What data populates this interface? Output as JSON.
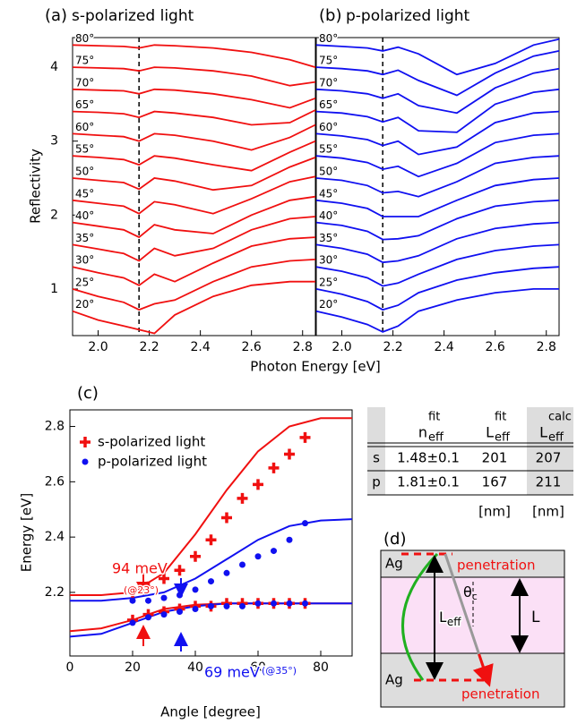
{
  "chart_data": [
    {
      "type": "line",
      "panel_label": "(a)",
      "title": "s-polarized light",
      "color": "#f01010",
      "ylabel": "Reflectivity",
      "xlabel": "Photon Energy [eV]",
      "xlim": [
        1.9,
        2.85
      ],
      "ylim": [
        0.37,
        4.4
      ],
      "xticks": [
        {
          "value": 2,
          "label": "2.0"
        },
        2.2,
        2.4,
        2.6,
        2.8
      ],
      "yticks": [
        1,
        2,
        3,
        4
      ],
      "reference_line": 2.16,
      "x": [
        1.9,
        2.0,
        2.1,
        2.16,
        2.22,
        2.3,
        2.45,
        2.6,
        2.75,
        2.85
      ],
      "series": [
        {
          "name": "20°",
          "values": [
            0.7,
            0.58,
            0.5,
            0.45,
            0.4,
            0.65,
            0.9,
            1.05,
            1.1,
            1.1
          ]
        },
        {
          "name": "25°",
          "values": [
            1.0,
            0.9,
            0.82,
            0.72,
            0.8,
            0.85,
            1.1,
            1.3,
            1.38,
            1.4
          ]
        },
        {
          "name": "30°",
          "values": [
            1.3,
            1.22,
            1.15,
            1.05,
            1.2,
            1.1,
            1.35,
            1.58,
            1.68,
            1.7
          ]
        },
        {
          "name": "35°",
          "values": [
            1.6,
            1.54,
            1.48,
            1.38,
            1.55,
            1.45,
            1.55,
            1.8,
            1.95,
            1.98
          ]
        },
        {
          "name": "40°",
          "values": [
            1.9,
            1.85,
            1.8,
            1.7,
            1.87,
            1.8,
            1.75,
            2.0,
            2.2,
            2.25
          ]
        },
        {
          "name": "45°",
          "values": [
            2.2,
            2.16,
            2.12,
            2.02,
            2.18,
            2.14,
            2.02,
            2.22,
            2.45,
            2.52
          ]
        },
        {
          "name": "50°",
          "values": [
            2.5,
            2.47,
            2.44,
            2.35,
            2.5,
            2.46,
            2.34,
            2.4,
            2.65,
            2.78
          ]
        },
        {
          "name": "55°",
          "values": [
            2.8,
            2.78,
            2.75,
            2.68,
            2.8,
            2.77,
            2.68,
            2.6,
            2.85,
            3.0
          ]
        },
        {
          "name": "60°",
          "values": [
            3.1,
            3.08,
            3.06,
            3.0,
            3.1,
            3.08,
            3.0,
            2.88,
            3.05,
            3.22
          ]
        },
        {
          "name": "65°",
          "values": [
            3.4,
            3.39,
            3.37,
            3.32,
            3.4,
            3.38,
            3.32,
            3.22,
            3.25,
            3.42
          ]
        },
        {
          "name": "70°",
          "values": [
            3.7,
            3.69,
            3.68,
            3.64,
            3.7,
            3.69,
            3.64,
            3.56,
            3.45,
            3.58
          ]
        },
        {
          "name": "75°",
          "values": [
            4.0,
            3.99,
            3.98,
            3.95,
            4.0,
            3.99,
            3.95,
            3.88,
            3.75,
            3.8
          ]
        },
        {
          "name": "80°",
          "values": [
            4.3,
            4.29,
            4.28,
            4.26,
            4.3,
            4.29,
            4.26,
            4.2,
            4.1,
            4.0
          ]
        }
      ]
    },
    {
      "type": "line",
      "panel_label": "(b)",
      "title": "p-polarized light",
      "color": "#1010f0",
      "xlim": [
        1.9,
        2.85
      ],
      "ylim": [
        0.37,
        4.4
      ],
      "xticks": [
        {
          "value": 2,
          "label": "2.0"
        },
        2.2,
        2.4,
        2.6,
        2.8
      ],
      "reference_line": 2.16,
      "x": [
        1.9,
        2.0,
        2.1,
        2.16,
        2.22,
        2.3,
        2.45,
        2.6,
        2.75,
        2.85
      ],
      "series": [
        {
          "name": "20°",
          "values": [
            0.7,
            0.62,
            0.52,
            0.42,
            0.5,
            0.7,
            0.85,
            0.95,
            1.0,
            1.0
          ]
        },
        {
          "name": "25°",
          "values": [
            1.0,
            0.93,
            0.83,
            0.72,
            0.78,
            0.95,
            1.12,
            1.22,
            1.28,
            1.3
          ]
        },
        {
          "name": "30°",
          "values": [
            1.3,
            1.24,
            1.15,
            1.04,
            1.08,
            1.2,
            1.4,
            1.52,
            1.58,
            1.6
          ]
        },
        {
          "name": "35°",
          "values": [
            1.6,
            1.55,
            1.47,
            1.36,
            1.38,
            1.45,
            1.68,
            1.82,
            1.88,
            1.9
          ]
        },
        {
          "name": "40°",
          "values": [
            1.9,
            1.86,
            1.78,
            1.67,
            1.68,
            1.72,
            1.95,
            2.12,
            2.18,
            2.2
          ]
        },
        {
          "name": "45°",
          "values": [
            2.2,
            2.16,
            2.09,
            1.98,
            1.98,
            1.98,
            2.2,
            2.4,
            2.48,
            2.5
          ]
        },
        {
          "name": "50°",
          "values": [
            2.5,
            2.47,
            2.4,
            2.3,
            2.32,
            2.25,
            2.45,
            2.7,
            2.78,
            2.8
          ]
        },
        {
          "name": "55°",
          "values": [
            2.8,
            2.77,
            2.71,
            2.62,
            2.66,
            2.52,
            2.7,
            2.98,
            3.08,
            3.1
          ]
        },
        {
          "name": "60°",
          "values": [
            3.1,
            3.07,
            3.02,
            2.94,
            3.0,
            2.82,
            2.92,
            3.25,
            3.38,
            3.4
          ]
        },
        {
          "name": "65°",
          "values": [
            3.4,
            3.38,
            3.33,
            3.26,
            3.32,
            3.14,
            3.12,
            3.5,
            3.66,
            3.7
          ]
        },
        {
          "name": "70°",
          "values": [
            3.7,
            3.68,
            3.64,
            3.58,
            3.64,
            3.48,
            3.38,
            3.72,
            3.92,
            3.98
          ]
        },
        {
          "name": "75°",
          "values": [
            4.0,
            3.98,
            3.95,
            3.9,
            3.96,
            3.82,
            3.62,
            3.92,
            4.15,
            4.22
          ]
        },
        {
          "name": "80°",
          "values": [
            4.3,
            4.28,
            4.26,
            4.22,
            4.27,
            4.18,
            3.9,
            4.05,
            4.3,
            4.38
          ]
        }
      ]
    },
    {
      "type": "scatter",
      "panel_label": "(c)",
      "xlabel": "Angle [degree]",
      "ylabel": "Energy [eV]",
      "xlim": [
        0,
        90
      ],
      "ylim": [
        1.97,
        2.86
      ],
      "xticks": [
        0,
        20,
        40,
        60,
        80
      ],
      "yticks": [
        2.2,
        2.4,
        2.6,
        2.8
      ],
      "legend": "upper left",
      "series": [
        {
          "name": "s-polarized light",
          "color": "#f01010",
          "marker": "plus",
          "x": [
            20,
            25,
            30,
            35,
            40,
            45,
            50,
            55,
            60,
            65,
            70,
            75,
            20,
            25,
            30,
            35,
            40,
            45,
            50,
            55,
            60,
            65,
            70,
            75
          ],
          "values": [
            2.2,
            2.22,
            2.25,
            2.28,
            2.33,
            2.39,
            2.47,
            2.54,
            2.59,
            2.65,
            2.7,
            2.76,
            2.1,
            2.12,
            2.13,
            2.14,
            2.15,
            2.15,
            2.16,
            2.16,
            2.16,
            2.16,
            2.16,
            2.16
          ]
        },
        {
          "name": "p-polarized light",
          "color": "#1010f0",
          "marker": "circle",
          "x": [
            20,
            25,
            30,
            35,
            40,
            45,
            50,
            55,
            60,
            65,
            70,
            75,
            20,
            25,
            30,
            35,
            40,
            45,
            50,
            55,
            60,
            65,
            70,
            75
          ],
          "values": [
            2.17,
            2.17,
            2.18,
            2.19,
            2.21,
            2.24,
            2.27,
            2.3,
            2.33,
            2.35,
            2.39,
            2.45,
            2.09,
            2.11,
            2.12,
            2.13,
            2.14,
            2.15,
            2.15,
            2.15,
            2.16,
            2.16,
            2.16,
            2.16
          ]
        }
      ],
      "fits": [
        {
          "color": "#f01010",
          "x": [
            0,
            10,
            20,
            30,
            40,
            50,
            60,
            70,
            80,
            90
          ],
          "values": [
            2.19,
            2.19,
            2.2,
            2.27,
            2.41,
            2.57,
            2.71,
            2.8,
            2.83,
            2.83
          ]
        },
        {
          "color": "#f01010",
          "x": [
            0,
            10,
            20,
            30,
            40,
            50,
            60,
            70,
            80,
            90
          ],
          "values": [
            2.06,
            2.07,
            2.1,
            2.14,
            2.155,
            2.16,
            2.16,
            2.16,
            2.16,
            2.16
          ]
        },
        {
          "color": "#1010f0",
          "x": [
            0,
            10,
            20,
            30,
            40,
            50,
            60,
            70,
            80,
            90
          ],
          "values": [
            2.17,
            2.17,
            2.18,
            2.2,
            2.25,
            2.32,
            2.39,
            2.44,
            2.46,
            2.465
          ]
        },
        {
          "color": "#1010f0",
          "x": [
            0,
            10,
            20,
            30,
            40,
            50,
            60,
            70,
            80,
            90
          ],
          "values": [
            2.04,
            2.05,
            2.09,
            2.13,
            2.15,
            2.16,
            2.16,
            2.16,
            2.16,
            2.16
          ]
        }
      ],
      "annotations": [
        {
          "text": "94 meV",
          "color": "#f01010"
        },
        {
          "text": "(@23°)",
          "color": "#f01010"
        },
        {
          "text": "69 meV",
          "color": "#1010f0"
        },
        {
          "text": "(@35°)",
          "color": "#1010f0"
        }
      ]
    }
  ],
  "table": {
    "header": [
      {
        "base": "n",
        "sup": "fit",
        "sub": "eff"
      },
      {
        "base": "L",
        "sup": "fit",
        "sub": "eff"
      },
      {
        "base": "L",
        "sup": "calc",
        "sub": "eff"
      }
    ],
    "rows": [
      [
        "s",
        "1.48±0.1",
        "201",
        "207"
      ],
      [
        "p",
        "1.81±0.1",
        "167",
        "211"
      ]
    ],
    "units": [
      "[nm]",
      "[nm]"
    ]
  },
  "diagram": {
    "label": "(d)",
    "ag_top": "Ag",
    "ag_bottom": "Ag",
    "penetration_top": "penetration",
    "penetration_bottom": "penetration",
    "l_eff": {
      "base": "L",
      "sub": "eff"
    },
    "l": "L",
    "theta": {
      "base": "θ",
      "sub": "c"
    }
  }
}
